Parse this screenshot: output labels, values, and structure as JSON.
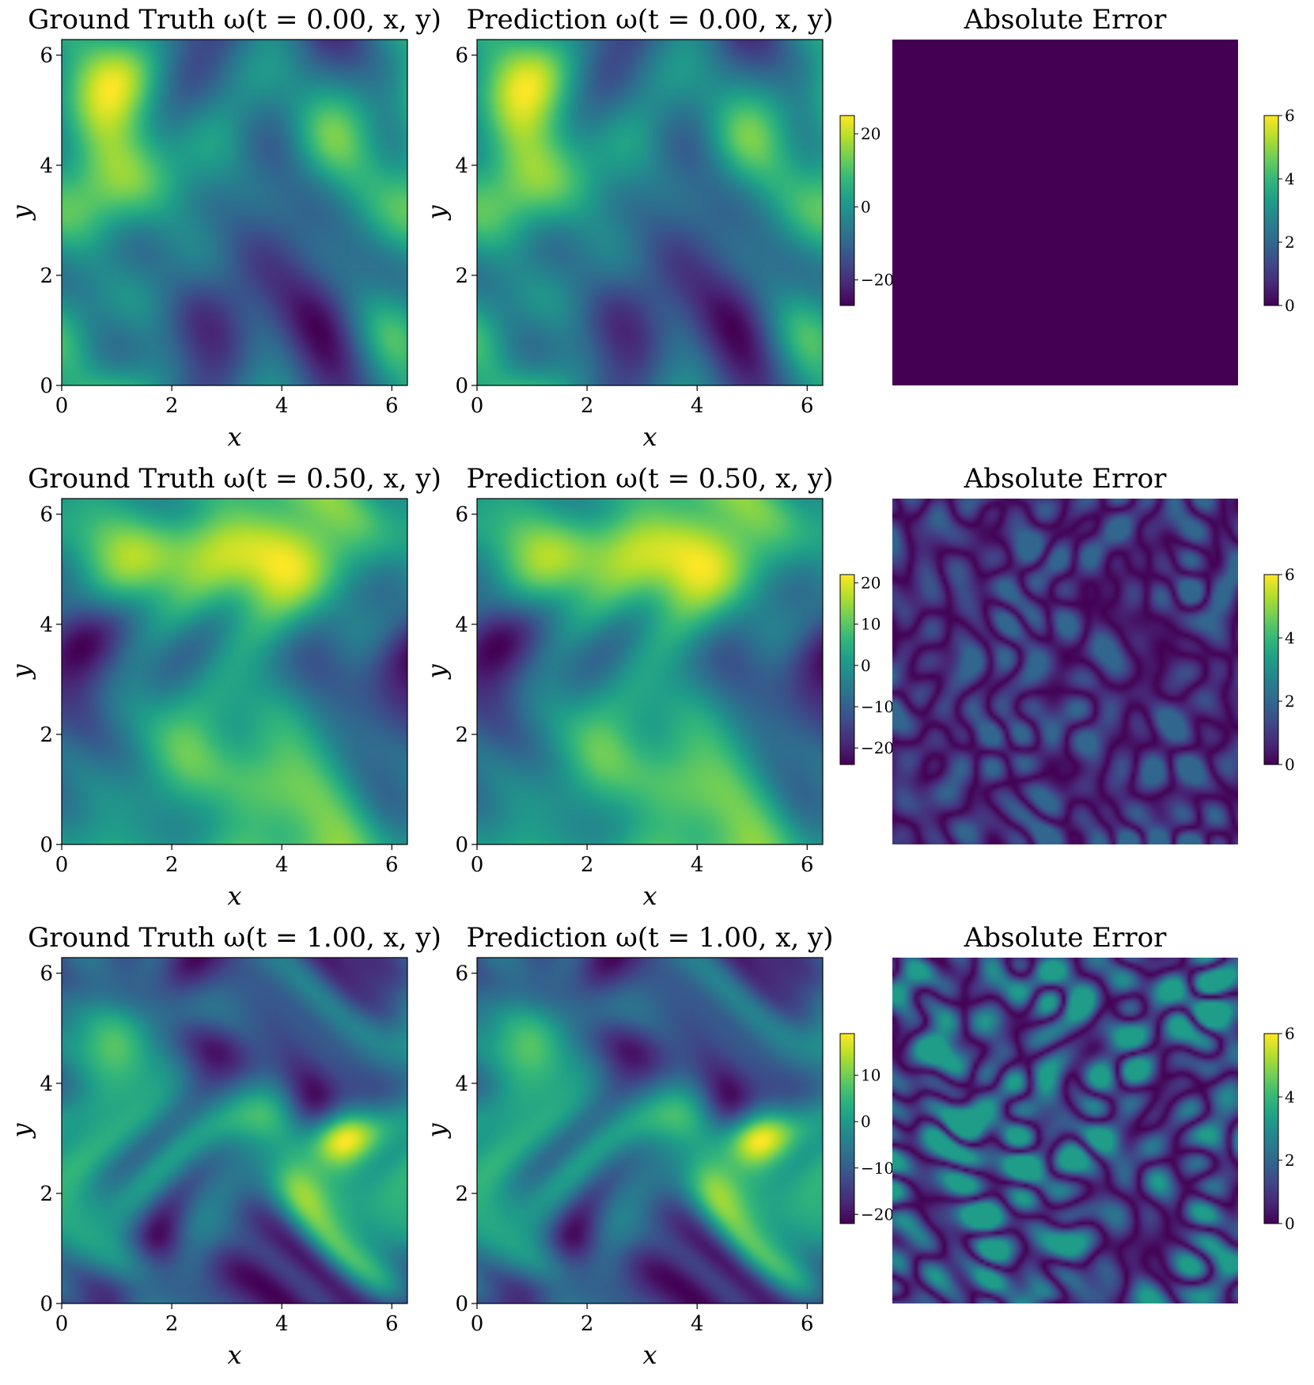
{
  "figure": {
    "colormap": "viridis",
    "colormap_stops": [
      "#440154",
      "#482878",
      "#3e4989",
      "#31688e",
      "#26828e",
      "#1f9e89",
      "#35b779",
      "#6ece58",
      "#b5de2b",
      "#fde725"
    ]
  },
  "chart_data": [
    {
      "type": "heatmap",
      "row": 0,
      "col": 0,
      "field": "ground_truth",
      "t": 0.0,
      "seed": 11,
      "title": "Ground Truth ω(t = 0.00, x, y)",
      "xlabel": "x",
      "ylabel": "y",
      "xlim": [
        0,
        6.283
      ],
      "ylim": [
        0,
        6.283
      ],
      "xticks": [
        "0",
        "2",
        "4",
        "6"
      ],
      "yticks": [
        "0",
        "2",
        "4",
        "6"
      ]
    },
    {
      "type": "heatmap",
      "row": 0,
      "col": 1,
      "field": "prediction",
      "t": 0.0,
      "seed": 11,
      "title": "Prediction ω(t = 0.00, x, y)",
      "xlabel": "x",
      "ylabel": "y",
      "xlim": [
        0,
        6.283
      ],
      "ylim": [
        0,
        6.283
      ],
      "xticks": [
        "0",
        "2",
        "4",
        "6"
      ],
      "yticks": [
        "0",
        "2",
        "4",
        "6"
      ],
      "colorbar": {
        "range": [
          -27,
          25
        ],
        "ticks": [
          20,
          0,
          -20
        ],
        "tick_labels": [
          "20",
          "0",
          "−20"
        ]
      }
    },
    {
      "type": "heatmap",
      "row": 0,
      "col": 2,
      "field": "absolute_error",
      "t": 0.0,
      "seed": 11,
      "title": "Absolute Error",
      "axes_visible": false,
      "error_level": 0.0,
      "colorbar": {
        "range": [
          0,
          6
        ],
        "ticks": [
          6,
          4,
          2,
          0
        ],
        "tick_labels": [
          "6",
          "4",
          "2",
          "0"
        ]
      }
    },
    {
      "type": "heatmap",
      "row": 1,
      "col": 0,
      "field": "ground_truth",
      "t": 0.5,
      "seed": 23,
      "title": "Ground Truth ω(t = 0.50, x, y)",
      "xlabel": "x",
      "ylabel": "y",
      "xlim": [
        0,
        6.283
      ],
      "ylim": [
        0,
        6.283
      ],
      "xticks": [
        "0",
        "2",
        "4",
        "6"
      ],
      "yticks": [
        "0",
        "2",
        "4",
        "6"
      ]
    },
    {
      "type": "heatmap",
      "row": 1,
      "col": 1,
      "field": "prediction",
      "t": 0.5,
      "seed": 23,
      "title": "Prediction ω(t = 0.50, x, y)",
      "xlabel": "x",
      "ylabel": "y",
      "xlim": [
        0,
        6.283
      ],
      "ylim": [
        0,
        6.283
      ],
      "xticks": [
        "0",
        "2",
        "4",
        "6"
      ],
      "yticks": [
        "0",
        "2",
        "4",
        "6"
      ],
      "colorbar": {
        "range": [
          -24,
          22
        ],
        "ticks": [
          20,
          10,
          0,
          -10,
          -20
        ],
        "tick_labels": [
          "20",
          "10",
          "0",
          "−10",
          "−20"
        ]
      }
    },
    {
      "type": "heatmap",
      "row": 1,
      "col": 2,
      "field": "absolute_error",
      "t": 0.5,
      "seed": 23,
      "title": "Absolute Error",
      "axes_visible": false,
      "error_level": 0.6,
      "colorbar": {
        "range": [
          0,
          6
        ],
        "ticks": [
          6,
          4,
          2,
          0
        ],
        "tick_labels": [
          "6",
          "4",
          "2",
          "0"
        ]
      }
    },
    {
      "type": "heatmap",
      "row": 2,
      "col": 0,
      "field": "ground_truth",
      "t": 1.0,
      "seed": 37,
      "title": "Ground Truth ω(t = 1.00, x, y)",
      "xlabel": "x",
      "ylabel": "y",
      "xlim": [
        0,
        6.283
      ],
      "ylim": [
        0,
        6.283
      ],
      "xticks": [
        "0",
        "2",
        "4",
        "6"
      ],
      "yticks": [
        "0",
        "2",
        "4",
        "6"
      ]
    },
    {
      "type": "heatmap",
      "row": 2,
      "col": 1,
      "field": "prediction",
      "t": 1.0,
      "seed": 37,
      "title": "Prediction ω(t = 1.00, x, y)",
      "xlabel": "x",
      "ylabel": "y",
      "xlim": [
        0,
        6.283
      ],
      "ylim": [
        0,
        6.283
      ],
      "xticks": [
        "0",
        "2",
        "4",
        "6"
      ],
      "yticks": [
        "0",
        "2",
        "4",
        "6"
      ],
      "colorbar": {
        "range": [
          -22,
          19
        ],
        "ticks": [
          10,
          0,
          -10,
          -20
        ],
        "tick_labels": [
          "10",
          "0",
          "−10",
          "−20"
        ]
      }
    },
    {
      "type": "heatmap",
      "row": 2,
      "col": 2,
      "field": "absolute_error",
      "t": 1.0,
      "seed": 37,
      "title": "Absolute Error",
      "axes_visible": false,
      "error_level": 1.0,
      "colorbar": {
        "range": [
          0,
          6
        ],
        "ticks": [
          6,
          4,
          2,
          0
        ],
        "tick_labels": [
          "6",
          "4",
          "2",
          "0"
        ]
      }
    }
  ]
}
